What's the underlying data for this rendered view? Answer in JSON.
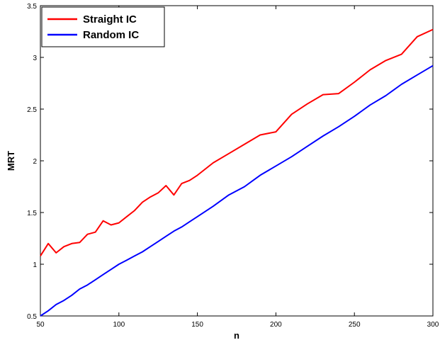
{
  "chart_data": {
    "type": "line",
    "title": "",
    "xlabel": "n",
    "ylabel": "MRT",
    "xlim": [
      50,
      300
    ],
    "ylim": [
      0.5,
      3.5
    ],
    "grid": false,
    "legend_position": "top-left",
    "x_ticks": [
      50,
      100,
      150,
      200,
      250,
      300
    ],
    "x_tick_labels": [
      "50",
      "100",
      "150",
      "200",
      "250",
      "300"
    ],
    "y_ticks": [
      0.5,
      1,
      1.5,
      2,
      2.5,
      3,
      3.5
    ],
    "y_tick_labels": [
      "0.5",
      "1",
      "1.5",
      "2",
      "2.5",
      "3",
      "3.5"
    ],
    "series": [
      {
        "name": "Straight IC",
        "color": "#ff0000",
        "x": [
          50,
          55,
          60,
          65,
          70,
          75,
          80,
          85,
          90,
          95,
          100,
          105,
          110,
          115,
          120,
          125,
          130,
          135,
          140,
          145,
          150,
          160,
          170,
          180,
          190,
          200,
          210,
          220,
          230,
          240,
          250,
          260,
          270,
          280,
          290,
          300
        ],
        "y": [
          1.08,
          1.2,
          1.11,
          1.17,
          1.2,
          1.21,
          1.29,
          1.31,
          1.42,
          1.38,
          1.4,
          1.46,
          1.52,
          1.6,
          1.65,
          1.69,
          1.76,
          1.67,
          1.78,
          1.81,
          1.86,
          1.98,
          2.07,
          2.16,
          2.25,
          2.28,
          2.45,
          2.55,
          2.64,
          2.65,
          2.76,
          2.88,
          2.97,
          3.03,
          3.2,
          3.27
        ]
      },
      {
        "name": "Random IC",
        "color": "#0000ff",
        "x": [
          50,
          55,
          60,
          65,
          70,
          75,
          80,
          85,
          90,
          95,
          100,
          105,
          110,
          115,
          120,
          125,
          130,
          135,
          140,
          145,
          150,
          160,
          170,
          180,
          190,
          200,
          210,
          220,
          230,
          240,
          250,
          260,
          270,
          280,
          290,
          300
        ],
        "y": [
          0.5,
          0.55,
          0.61,
          0.65,
          0.7,
          0.76,
          0.8,
          0.85,
          0.9,
          0.95,
          1.0,
          1.04,
          1.08,
          1.12,
          1.17,
          1.22,
          1.27,
          1.32,
          1.36,
          1.41,
          1.46,
          1.56,
          1.67,
          1.75,
          1.86,
          1.95,
          2.04,
          2.14,
          2.24,
          2.33,
          2.43,
          2.54,
          2.63,
          2.74,
          2.83,
          2.92
        ]
      }
    ]
  }
}
